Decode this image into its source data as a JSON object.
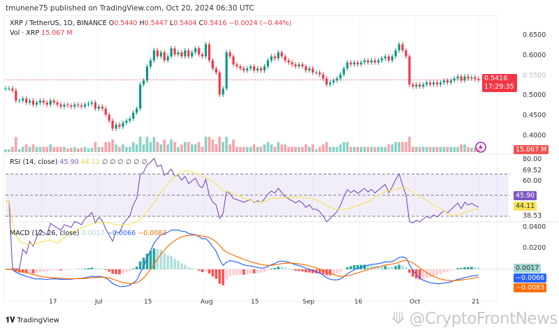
{
  "publisher": "tmunene75 published on TradingView.com, Oct 20, 2024 06:30 UTC",
  "legend": {
    "symbol": "XRP / TetherUS, 1D, BINANCE",
    "o_label": "O",
    "o": "0.5440",
    "h_label": "H",
    "h": "0.5447",
    "l_label": "L",
    "l": "0.5404",
    "c_label": "C",
    "c": "0.5416",
    "change": "−0.0024 (−0.44%)",
    "vol_label": "Vol · XRP",
    "vol": "15.067 M"
  },
  "rsi_legend": {
    "label": "RSI (14, close)",
    "rsi": "45.90",
    "ma": "44.11",
    "extra": "∅ ∅ ∅ ∅ ∅ ∅"
  },
  "macd_legend": {
    "label": "MACD (12, 26, close)",
    "hist": "0.0017",
    "macd": "−0.0066",
    "signal": "−0.0083"
  },
  "price_axis": [
    "0.6500",
    "0.6000",
    "0.5500",
    "0.5000",
    "0.4500",
    "0.4000"
  ],
  "price_tag": {
    "price": "0.5416",
    "countdown": "17:29:35"
  },
  "volume_tag": "15.067 M",
  "rsi_axis": [
    "80.00",
    "69.52",
    "60.00",
    "38.53"
  ],
  "rsi_tags": {
    "rsi": "45.90",
    "ma": "44.11"
  },
  "macd_axis": [
    "0.0400",
    "0.0200"
  ],
  "macd_tags": {
    "hist": "0.0017",
    "macd": "−0.0066",
    "signal": "−0.0083"
  },
  "time_axis": [
    "17",
    "Jul",
    "15",
    "Aug",
    "15",
    "Sep",
    "16",
    "Oct",
    "21"
  ],
  "brand": "TradingView",
  "watermark": "@CryptoFrontNews",
  "colors": {
    "up": "#089981",
    "down": "#f23645",
    "rsi": "#7e57c2",
    "rsi_ma": "#f7e35a",
    "macd": "#2962ff",
    "signal": "#ff6d00"
  },
  "chart_data": {
    "type": "candlestick",
    "x_start": "2024-06-04",
    "x_end": "2024-10-20",
    "interval": "1D",
    "ylim": [
      0.37,
      0.67
    ],
    "close": [
      0.52,
      0.52,
      0.515,
      0.49,
      0.49,
      0.495,
      0.485,
      0.49,
      0.48,
      0.485,
      0.49,
      0.485,
      0.48,
      0.49,
      0.485,
      0.48,
      0.475,
      0.48,
      0.478,
      0.475,
      0.48,
      0.478,
      0.475,
      0.48,
      0.482,
      0.485,
      0.47,
      0.475,
      0.47,
      0.455,
      0.44,
      0.42,
      0.43,
      0.425,
      0.435,
      0.44,
      0.445,
      0.46,
      0.47,
      0.53,
      0.54,
      0.575,
      0.59,
      0.615,
      0.6,
      0.61,
      0.59,
      0.6,
      0.62,
      0.605,
      0.61,
      0.6,
      0.615,
      0.6,
      0.61,
      0.62,
      0.605,
      0.6,
      0.63,
      0.59,
      0.57,
      0.56,
      0.505,
      0.52,
      0.61,
      0.6,
      0.58,
      0.575,
      0.57,
      0.565,
      0.57,
      0.575,
      0.565,
      0.57,
      0.565,
      0.575,
      0.59,
      0.6,
      0.595,
      0.61,
      0.6,
      0.59,
      0.585,
      0.58,
      0.575,
      0.58,
      0.575,
      0.565,
      0.57,
      0.56,
      0.56,
      0.555,
      0.545,
      0.53,
      0.535,
      0.54,
      0.545,
      0.555,
      0.57,
      0.585,
      0.58,
      0.585,
      0.58,
      0.585,
      0.59,
      0.585,
      0.59,
      0.585,
      0.59,
      0.595,
      0.6,
      0.59,
      0.6,
      0.615,
      0.63,
      0.615,
      0.6,
      0.53,
      0.525,
      0.53,
      0.525,
      0.53,
      0.535,
      0.53,
      0.535,
      0.53,
      0.535,
      0.54,
      0.535,
      0.54,
      0.545,
      0.55,
      0.54,
      0.55,
      0.545,
      0.548,
      0.544,
      0.5416
    ]
  }
}
